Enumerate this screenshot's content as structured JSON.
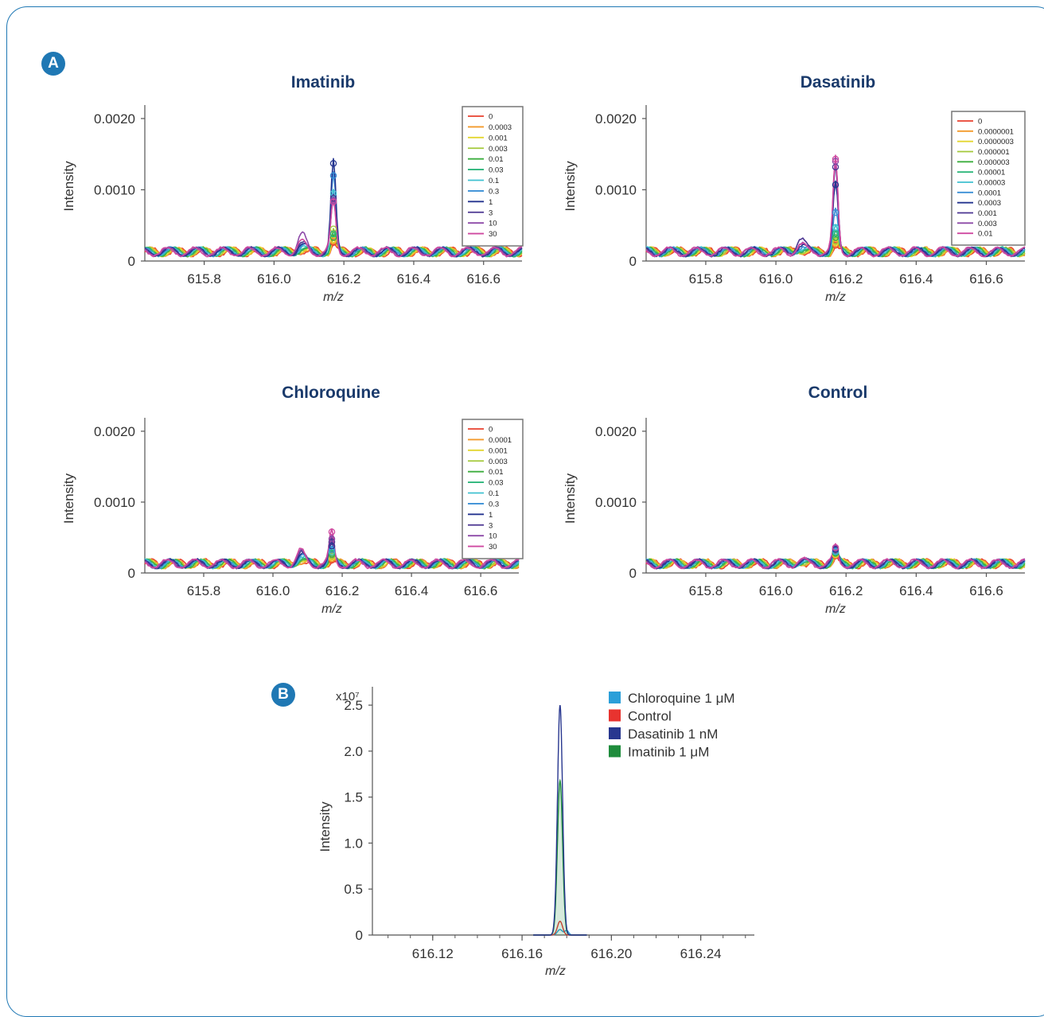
{
  "panel_labels": {
    "a": "A",
    "b": "B"
  },
  "colors": {
    "frame": "#1f78b4",
    "title": "#1a3a6b",
    "concentration_series": [
      "#e8412e",
      "#f39a2b",
      "#e3d630",
      "#a3c93a",
      "#3cae3f",
      "#2bb57a",
      "#3fc1d0",
      "#3a8fd6",
      "#24348f",
      "#4b3591",
      "#8d4aa8",
      "#cf49a0"
    ]
  },
  "chart_data": [
    {
      "type": "line",
      "title": "Imatinib",
      "xlabel": "m/z",
      "ylabel": "Intensity",
      "xlim": [
        615.63,
        616.71
      ],
      "ylim": [
        0,
        0.0021
      ],
      "xticks": [
        "615.8",
        "616.0",
        "616.2",
        "616.4",
        "616.6"
      ],
      "xtick_values": [
        615.8,
        616.0,
        616.2,
        616.4,
        616.6
      ],
      "yticks": [
        "0",
        "0.0010",
        "0.0020"
      ],
      "ytick_values": [
        0,
        0.001,
        0.002
      ],
      "legend_position": "top-right",
      "baseline": 0.00013,
      "peak_x": 616.17,
      "side_peak_x": 616.08,
      "series": [
        {
          "name": "0",
          "peak": 0.00026,
          "side": 3e-05
        },
        {
          "name": "0.0003",
          "peak": 0.00028,
          "side": 4e-05
        },
        {
          "name": "0.001",
          "peak": 0.0003,
          "side": 4e-05
        },
        {
          "name": "0.003",
          "peak": 0.00045,
          "side": 5e-05
        },
        {
          "name": "0.01",
          "peak": 0.00033,
          "side": 4e-05
        },
        {
          "name": "0.03",
          "peak": 0.00038,
          "side": 5e-05
        },
        {
          "name": "0.1",
          "peak": 0.00095,
          "side": 6e-05
        },
        {
          "name": "0.3",
          "peak": 0.0012,
          "side": 7e-05
        },
        {
          "name": "1",
          "peak": 0.00137,
          "side": 8e-05
        },
        {
          "name": "3",
          "peak": 0.00088,
          "side": 0.0001
        },
        {
          "name": "10",
          "peak": 0.00085,
          "side": 0.00022
        },
        {
          "name": "30",
          "peak": 0.00083,
          "side": 0.00012
        }
      ]
    },
    {
      "type": "line",
      "title": "Dasatinib",
      "xlabel": "m/z",
      "ylabel": "Intensity",
      "xlim": [
        615.63,
        616.71
      ],
      "ylim": [
        0,
        0.0021
      ],
      "xticks": [
        "615.8",
        "616.0",
        "616.2",
        "616.4",
        "616.6"
      ],
      "xtick_values": [
        615.8,
        616.0,
        616.2,
        616.4,
        616.6
      ],
      "yticks": [
        "0",
        "0.0010",
        "0.0020"
      ],
      "ytick_values": [
        0,
        0.001,
        0.002
      ],
      "legend_position": "top-right",
      "baseline": 0.00013,
      "peak_x": 616.17,
      "side_peak_x": 616.07,
      "series": [
        {
          "name": "0",
          "peak": 0.00022,
          "side": 3e-05
        },
        {
          "name": "0.0000001",
          "peak": 0.00024,
          "side": 3e-05
        },
        {
          "name": "0.0000003",
          "peak": 0.00026,
          "side": 4e-05
        },
        {
          "name": "0.000001",
          "peak": 0.00028,
          "side": 4e-05
        },
        {
          "name": "0.000003",
          "peak": 0.00033,
          "side": 5e-05
        },
        {
          "name": "0.00001",
          "peak": 0.00039,
          "side": 5e-05
        },
        {
          "name": "0.00003",
          "peak": 0.00047,
          "side": 6e-05
        },
        {
          "name": "0.0001",
          "peak": 0.00068,
          "side": 7e-05
        },
        {
          "name": "0.0003",
          "peak": 0.00107,
          "side": 9e-05
        },
        {
          "name": "0.001",
          "peak": 0.00132,
          "side": 0.00018
        },
        {
          "name": "0.003",
          "peak": 0.0014,
          "side": 0.0001
        },
        {
          "name": "0.01",
          "peak": 0.00143,
          "side": 8e-05
        }
      ]
    },
    {
      "type": "line",
      "title": "Chloroquine",
      "xlabel": "m/z",
      "ylabel": "Intensity",
      "xlim": [
        615.63,
        616.71
      ],
      "ylim": [
        0,
        0.0021
      ],
      "xticks": [
        "615.8",
        "616.0",
        "616.2",
        "616.4",
        "616.6"
      ],
      "xtick_values": [
        615.8,
        616.0,
        616.2,
        616.4,
        616.6
      ],
      "yticks": [
        "0",
        "0.0010",
        "0.0020"
      ],
      "ytick_values": [
        0,
        0.001,
        0.002
      ],
      "legend_position": "top-right",
      "baseline": 0.00013,
      "peak_x": 616.17,
      "side_peak_x": 616.08,
      "series": [
        {
          "name": "0",
          "peak": 0.00018,
          "side": 5e-05
        },
        {
          "name": "0.0001",
          "peak": 0.0002,
          "side": 5e-05
        },
        {
          "name": "0.001",
          "peak": 0.00022,
          "side": 6e-05
        },
        {
          "name": "0.003",
          "peak": 0.00024,
          "side": 6e-05
        },
        {
          "name": "0.01",
          "peak": 0.00026,
          "side": 7e-05
        },
        {
          "name": "0.03",
          "peak": 0.00028,
          "side": 7e-05
        },
        {
          "name": "0.1",
          "peak": 0.0003,
          "side": 8e-05
        },
        {
          "name": "0.3",
          "peak": 0.00033,
          "side": 0.0001
        },
        {
          "name": "1",
          "peak": 0.00038,
          "side": 0.00011
        },
        {
          "name": "3",
          "peak": 0.00044,
          "side": 0.00013
        },
        {
          "name": "10",
          "peak": 0.00048,
          "side": 0.00015
        },
        {
          "name": "30",
          "peak": 0.00058,
          "side": 0.00016
        }
      ]
    },
    {
      "type": "line",
      "title": "Control",
      "xlabel": "m/z",
      "ylabel": "Intensity",
      "xlim": [
        615.63,
        616.71
      ],
      "ylim": [
        0,
        0.0021
      ],
      "xticks": [
        "615.8",
        "616.0",
        "616.2",
        "616.4",
        "616.6"
      ],
      "xtick_values": [
        615.8,
        616.0,
        616.2,
        616.4,
        616.6
      ],
      "yticks": [
        "0",
        "0.0010",
        "0.0020"
      ],
      "ytick_values": [
        0,
        0.001,
        0.002
      ],
      "legend_position": "none",
      "baseline": 0.00013,
      "peak_x": 616.17,
      "side_peak_x": 616.07,
      "series": [
        {
          "peak": 0.00024,
          "side": 3e-05
        },
        {
          "peak": 0.00025,
          "side": 3e-05
        },
        {
          "peak": 0.00026,
          "side": 4e-05
        },
        {
          "peak": 0.00027,
          "side": 4e-05
        },
        {
          "peak": 0.00028,
          "side": 4e-05
        },
        {
          "peak": 0.00029,
          "side": 4e-05
        },
        {
          "peak": 0.0003,
          "side": 4e-05
        },
        {
          "peak": 0.00031,
          "side": 4e-05
        },
        {
          "peak": 0.00033,
          "side": 4e-05
        },
        {
          "peak": 0.00034,
          "side": 4e-05
        },
        {
          "peak": 0.00035,
          "side": 4e-05
        },
        {
          "peak": 0.00036,
          "side": 4e-05
        }
      ]
    },
    {
      "type": "line",
      "title": "",
      "xlabel": "m/z",
      "ylabel": "Intensity",
      "y_multiplier_label": "x10⁷",
      "xlim": [
        616.093,
        616.264
      ],
      "ylim": [
        0,
        2.7
      ],
      "xticks": [
        "616.12",
        "616.16",
        "616.20",
        "616.24"
      ],
      "xtick_values": [
        616.12,
        616.16,
        616.2,
        616.24
      ],
      "yticks": [
        "0",
        "0.5",
        "1.0",
        "1.5",
        "2.0",
        "2.5"
      ],
      "ytick_values": [
        0,
        0.5,
        1.0,
        1.5,
        2.0,
        2.5
      ],
      "legend_position": "top-right",
      "peak_x": 616.177,
      "series": [
        {
          "name": "Chloroquine 1 μM",
          "color": "#2b9fd9",
          "peak": 0.06
        },
        {
          "name": "Control",
          "color": "#e8332f",
          "peak": 0.15
        },
        {
          "name": "Dasatinib 1 nM",
          "color": "#28378f",
          "peak": 2.5
        },
        {
          "name": "Imatinib 1 μM",
          "color": "#1e8c3c",
          "peak": 1.68
        }
      ]
    }
  ]
}
